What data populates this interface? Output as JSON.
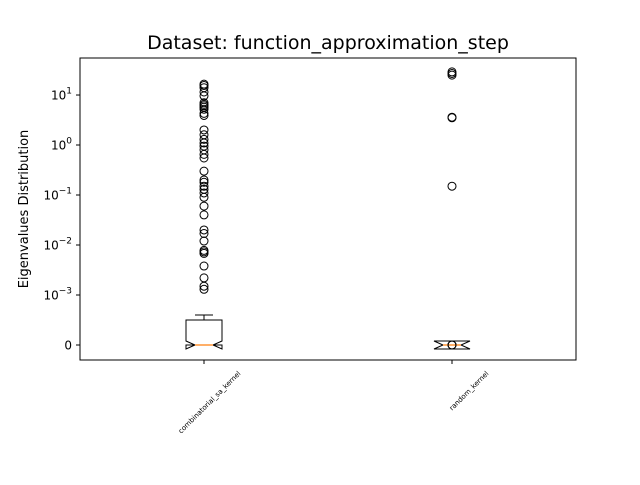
{
  "chart_data": {
    "type": "box",
    "title": "Dataset: function_approximation_step",
    "xlabel": "",
    "ylabel": "Eigenvalues Distribution",
    "yscale": "symlog",
    "linthresh": 0.001,
    "ylim": [
      -0.0003,
      55
    ],
    "y_ticks": [
      {
        "value": 0,
        "label": "0"
      },
      {
        "value": 0.001,
        "label": "10^-3"
      },
      {
        "value": 0.01,
        "label": "10^-2"
      },
      {
        "value": 0.1,
        "label": "10^-1"
      },
      {
        "value": 1,
        "label": "10^0"
      },
      {
        "value": 10,
        "label": "10^1"
      }
    ],
    "categories": [
      "combinatorial_sa_kernel",
      "random_kernel"
    ],
    "boxes": [
      {
        "name": "combinatorial_sa_kernel",
        "notch": true,
        "whislo": 0,
        "q1": 0,
        "med": 0,
        "q3": 0.0005,
        "whishi": 0.0006,
        "fliers": [
          0.0013,
          0.0015,
          0.0022,
          0.0038,
          0.0068,
          0.0073,
          0.0078,
          0.012,
          0.017,
          0.02,
          0.04,
          0.06,
          0.09,
          0.11,
          0.13,
          0.15,
          0.18,
          0.2,
          0.3,
          0.55,
          0.65,
          0.8,
          0.95,
          1.1,
          1.3,
          1.6,
          2.0,
          3.9,
          4.3,
          5.2,
          5.7,
          6.1,
          6.5,
          7.0,
          9.6,
          11.5,
          14.0,
          15.5,
          16.5
        ]
      },
      {
        "name": "random_kernel",
        "notch": true,
        "whislo": 0,
        "q1": 0,
        "med": 0,
        "q3": 0,
        "whishi": 0,
        "fliers": [
          0,
          0,
          0,
          0.15,
          3.5,
          3.6,
          25.0,
          27.0,
          29.0
        ]
      }
    ],
    "colors": {
      "box_edge": "#000000",
      "median": "#ff7f0e",
      "flier_edge": "#000000"
    }
  }
}
